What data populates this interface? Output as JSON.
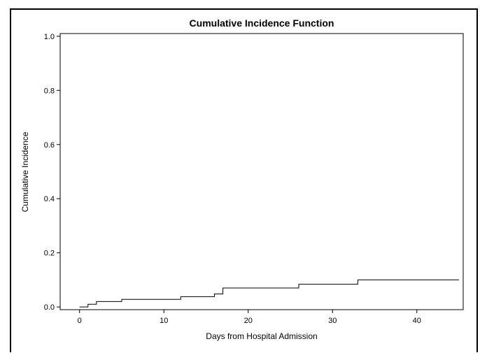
{
  "chart_data": {
    "type": "line",
    "title": "Cumulative Incidence Function",
    "xlabel": "Days from Hospital Admission",
    "ylabel": "Cumulative Incidence",
    "xlim": [
      -2.3,
      45.5
    ],
    "ylim": [
      -0.01,
      1.01
    ],
    "xticks": [
      0,
      10,
      20,
      30,
      40
    ],
    "xtick_labels": [
      "0",
      "10",
      "20",
      "30",
      "40"
    ],
    "yticks": [
      0.0,
      0.2,
      0.4,
      0.6,
      0.8,
      1.0
    ],
    "ytick_labels": [
      "0.0",
      "0.2",
      "0.4",
      "0.6",
      "0.8",
      "1.0"
    ],
    "grid": false,
    "step": true,
    "series": [
      {
        "color": "#000000",
        "x": [
          0,
          1,
          2,
          5,
          12,
          16,
          17,
          26,
          33,
          45
        ],
        "y": [
          0.0,
          0.01,
          0.02,
          0.028,
          0.038,
          0.048,
          0.07,
          0.084,
          0.1,
          0.1
        ]
      }
    ]
  }
}
